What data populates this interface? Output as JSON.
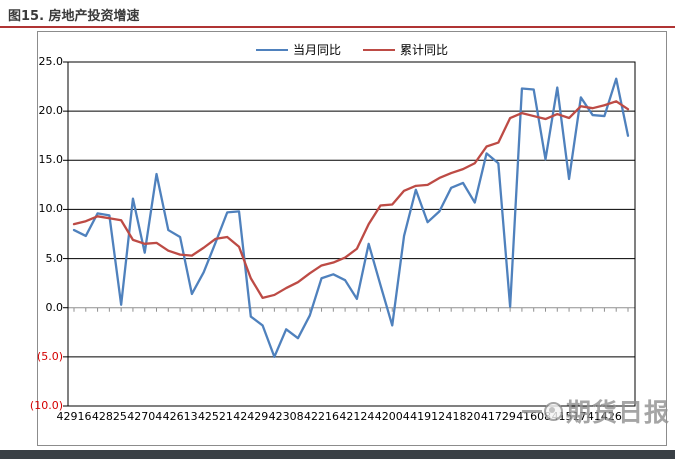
{
  "page": {
    "title": "图15. 房地产投资增速",
    "watermark": "期货日报"
  },
  "legend": [
    {
      "label": "当月同比",
      "color": "#4f81bd"
    },
    {
      "label": "累计同比",
      "color": "#bd4b45"
    }
  ],
  "chart_data": {
    "type": "line",
    "title": "图15. 房地产投资增速",
    "xlabel": "",
    "ylabel": "",
    "ylim": [
      -10,
      25
    ],
    "grid": "horizontal",
    "legend_position": "top-center",
    "n_points": 48,
    "x_tick_every": 3,
    "x_tick_labels": [
      "42916",
      "42825",
      "42704",
      "42613",
      "42521",
      "42429",
      "42308",
      "42216",
      "42124",
      "42004",
      "41912",
      "41820",
      "41729",
      "41608",
      "41517",
      "41426"
    ],
    "y_ticks": [
      {
        "label": "25.0",
        "value": 25,
        "color": "#000000"
      },
      {
        "label": "20.0",
        "value": 20,
        "color": "#000000"
      },
      {
        "label": "15.0",
        "value": 15,
        "color": "#000000"
      },
      {
        "label": "10.0",
        "value": 10,
        "color": "#000000"
      },
      {
        "label": "5.0",
        "value": 5,
        "color": "#000000"
      },
      {
        "label": "0.0",
        "value": 0,
        "color": "#000000"
      },
      {
        "label": "(5.0)",
        "value": -5,
        "color": "#d40000"
      },
      {
        "label": "(10.0)",
        "value": -10,
        "color": "#d40000"
      }
    ],
    "series": [
      {
        "name": "当月同比",
        "color": "#4f81bd",
        "values": [
          7.9,
          7.3,
          9.6,
          9.4,
          0.3,
          11.1,
          5.6,
          13.6,
          7.9,
          7.2,
          1.4,
          3.6,
          6.6,
          9.7,
          9.8,
          -0.9,
          -1.8,
          -5.0,
          -2.2,
          -3.1,
          -0.8,
          3.0,
          3.4,
          2.8,
          0.9,
          6.5,
          2.3,
          -1.8,
          7.3,
          12.0,
          8.7,
          9.8,
          12.2,
          12.7,
          10.7,
          15.7,
          14.7,
          0.1,
          22.3,
          22.2,
          15.1,
          22.4,
          13.1,
          21.4,
          19.6,
          19.5,
          23.3,
          17.5
        ]
      },
      {
        "name": "累计同比",
        "color": "#bd4b45",
        "values": [
          8.5,
          8.8,
          9.3,
          9.1,
          8.9,
          6.9,
          6.5,
          6.6,
          5.8,
          5.4,
          5.3,
          6.1,
          7.0,
          7.2,
          6.2,
          3.0,
          1.0,
          1.3,
          2.0,
          2.6,
          3.5,
          4.3,
          4.6,
          5.1,
          6.0,
          8.5,
          10.4,
          10.5,
          11.9,
          12.4,
          12.5,
          13.2,
          13.7,
          14.1,
          14.7,
          16.4,
          16.8,
          19.3,
          19.8,
          19.5,
          19.2,
          19.7,
          19.3,
          20.5,
          20.3,
          20.6,
          21.0,
          20.2
        ]
      }
    ]
  }
}
